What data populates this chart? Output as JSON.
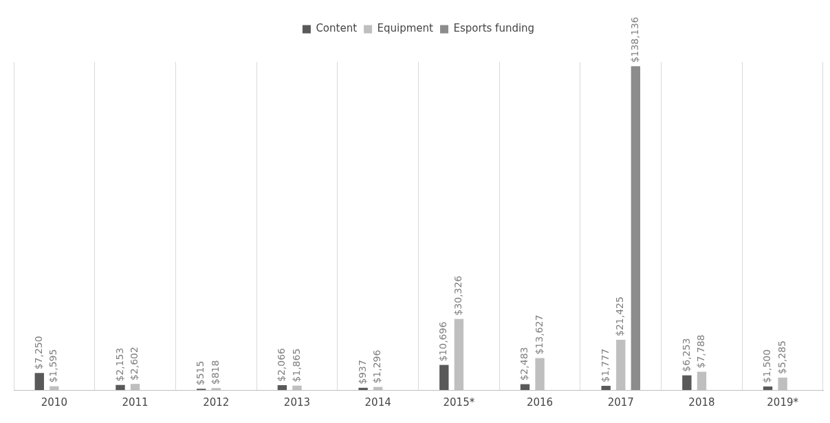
{
  "chart_data": {
    "type": "bar",
    "categories": [
      "2010",
      "2011",
      "2012",
      "2013",
      "2014",
      "2015*",
      "2016",
      "2017",
      "2018",
      "2019*"
    ],
    "series": [
      {
        "name": "Content",
        "color": "#595959",
        "values": [
          7250,
          2153,
          515,
          2066,
          937,
          10696,
          2483,
          1777,
          6253,
          1500
        ],
        "value_labels": [
          "$7,250",
          "$2,153",
          "$515",
          "$2,066",
          "$937",
          "$10,696",
          "$2,483",
          "$1,777",
          "$6,253",
          "$1,500"
        ]
      },
      {
        "name": "Equipment",
        "color": "#bfbfbf",
        "values": [
          1595,
          2602,
          818,
          1865,
          1296,
          30326,
          13627,
          21425,
          7788,
          5285
        ],
        "value_labels": [
          "$1,595",
          "$2,602",
          "$818",
          "$1,865",
          "$1,296",
          "$30,326",
          "$13,627",
          "$21,425",
          "$7,788",
          "$5,285"
        ]
      },
      {
        "name": "Esports funding",
        "color": "#8c8c8c",
        "values": [
          null,
          null,
          null,
          null,
          null,
          null,
          null,
          138136,
          null,
          null
        ],
        "value_labels": [
          null,
          null,
          null,
          null,
          null,
          null,
          null,
          "$138,136",
          null,
          null
        ]
      }
    ],
    "grid": "x",
    "legend": "top"
  }
}
